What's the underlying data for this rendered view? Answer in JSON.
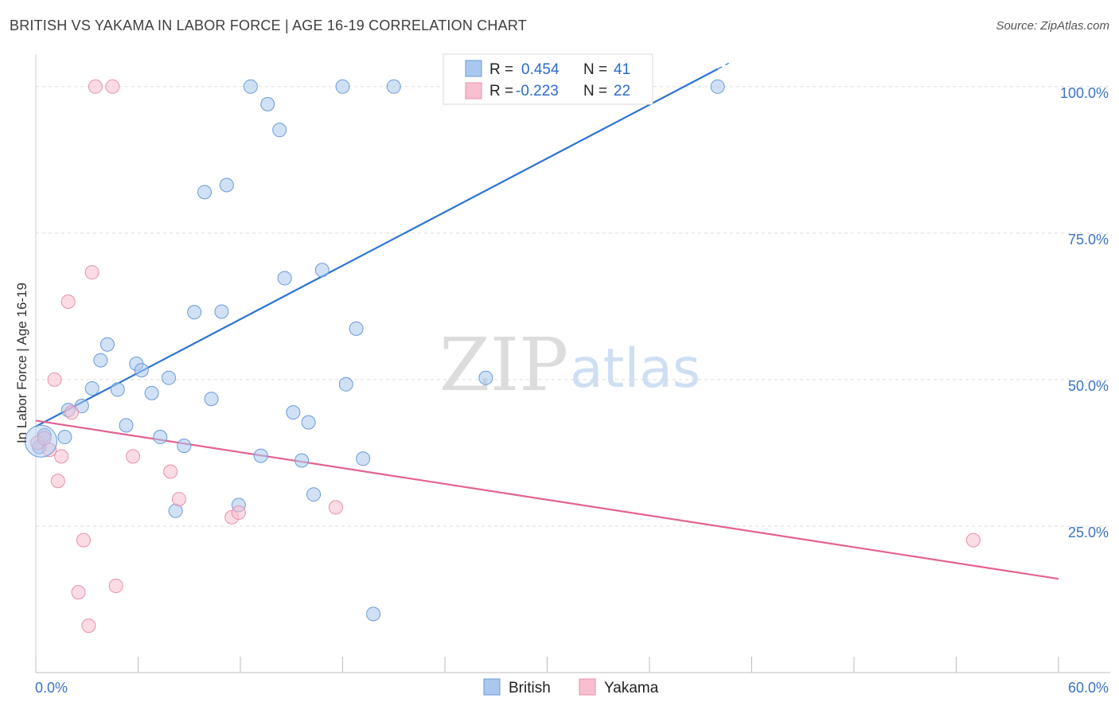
{
  "title": "BRITISH VS YAKAMA IN LABOR FORCE | AGE 16-19 CORRELATION CHART",
  "source": "Source: ZipAtlas.com",
  "watermark": {
    "part1": "ZIP",
    "part2": "atlas"
  },
  "colors": {
    "british_fill": "#aac8ef",
    "british_stroke": "#6a9ad8",
    "british_line": "#2b74d1",
    "yakama_fill": "#f7bfd0",
    "yakama_stroke": "#e790ab",
    "yakama_line": "#e4628f",
    "grid": "#dcdcdc",
    "axis_label": "#3b74c4"
  },
  "legend": {
    "british": {
      "r_label": "R =",
      "r_value": "0.454",
      "n_label": "N =",
      "n_value": "41"
    },
    "yakama": {
      "r_label": "R =",
      "r_value": "-0.223",
      "n_label": "N =",
      "n_value": "22"
    }
  },
  "bottom_legend": [
    "British",
    "Yakama"
  ],
  "chart_data": {
    "type": "scatter",
    "title": "BRITISH VS YAKAMA IN LABOR FORCE | AGE 16-19 CORRELATION CHART",
    "xlabel": "",
    "ylabel": "In Labor Force | Age 16-19",
    "xlim": [
      0,
      60
    ],
    "ylim": [
      0,
      105
    ],
    "x_tick_labels": [
      {
        "value": 0,
        "label": "0.0%"
      },
      {
        "value": 60,
        "label": "60.0%"
      }
    ],
    "y_tick_labels": [
      {
        "value": 25,
        "label": "25.0%"
      },
      {
        "value": 50,
        "label": "50.0%"
      },
      {
        "value": 75,
        "label": "75.0%"
      },
      {
        "value": 100,
        "label": "100.0%"
      }
    ],
    "series": [
      {
        "name": "British",
        "points": [
          [
            0.2,
            38.5
          ],
          [
            0.5,
            40.5
          ],
          [
            1.7,
            40.2
          ],
          [
            1.9,
            44.8
          ],
          [
            2.7,
            45.5
          ],
          [
            3.3,
            48.5
          ],
          [
            3.8,
            53.3
          ],
          [
            4.2,
            56.0
          ],
          [
            4.8,
            48.3
          ],
          [
            5.3,
            42.2
          ],
          [
            5.9,
            52.7
          ],
          [
            6.2,
            51.6
          ],
          [
            6.8,
            47.7
          ],
          [
            7.3,
            40.2
          ],
          [
            7.8,
            50.3
          ],
          [
            8.2,
            27.6
          ],
          [
            8.7,
            38.7
          ],
          [
            9.3,
            61.5
          ],
          [
            9.9,
            82.0
          ],
          [
            10.3,
            46.7
          ],
          [
            10.9,
            61.6
          ],
          [
            11.2,
            83.2
          ],
          [
            11.9,
            28.6
          ],
          [
            12.6,
            100.0
          ],
          [
            13.2,
            37.0
          ],
          [
            13.6,
            97.0
          ],
          [
            14.3,
            92.6
          ],
          [
            14.6,
            67.3
          ],
          [
            15.1,
            44.4
          ],
          [
            15.6,
            36.2
          ],
          [
            16.0,
            42.7
          ],
          [
            16.3,
            30.4
          ],
          [
            16.8,
            68.7
          ],
          [
            18.0,
            100.0
          ],
          [
            18.2,
            49.2
          ],
          [
            18.8,
            58.7
          ],
          [
            19.2,
            36.5
          ],
          [
            19.8,
            10.0
          ],
          [
            21.0,
            100.0
          ],
          [
            26.4,
            50.3
          ],
          [
            40.0,
            100.0
          ]
        ],
        "trend": {
          "x": [
            0,
            60
          ],
          "y": [
            42.0,
            133.5
          ],
          "solid_until_x": 40.0
        }
      },
      {
        "name": "Yakama",
        "points": [
          [
            0.1,
            39.2
          ],
          [
            0.5,
            40.0
          ],
          [
            0.8,
            38.0
          ],
          [
            1.1,
            50.0
          ],
          [
            1.3,
            32.7
          ],
          [
            1.5,
            36.9
          ],
          [
            1.9,
            63.3
          ],
          [
            2.1,
            44.4
          ],
          [
            2.5,
            13.7
          ],
          [
            2.8,
            22.6
          ],
          [
            3.1,
            8.0
          ],
          [
            3.3,
            68.3
          ],
          [
            3.5,
            100.0
          ],
          [
            4.5,
            100.0
          ],
          [
            4.7,
            14.8
          ],
          [
            5.7,
            36.9
          ],
          [
            7.9,
            34.3
          ],
          [
            8.4,
            29.6
          ],
          [
            11.5,
            26.5
          ],
          [
            11.9,
            27.3
          ],
          [
            17.6,
            28.2
          ],
          [
            55.0,
            22.6
          ]
        ],
        "trend": {
          "x": [
            0,
            60
          ],
          "y": [
            43.0,
            16.0
          ]
        }
      }
    ]
  }
}
